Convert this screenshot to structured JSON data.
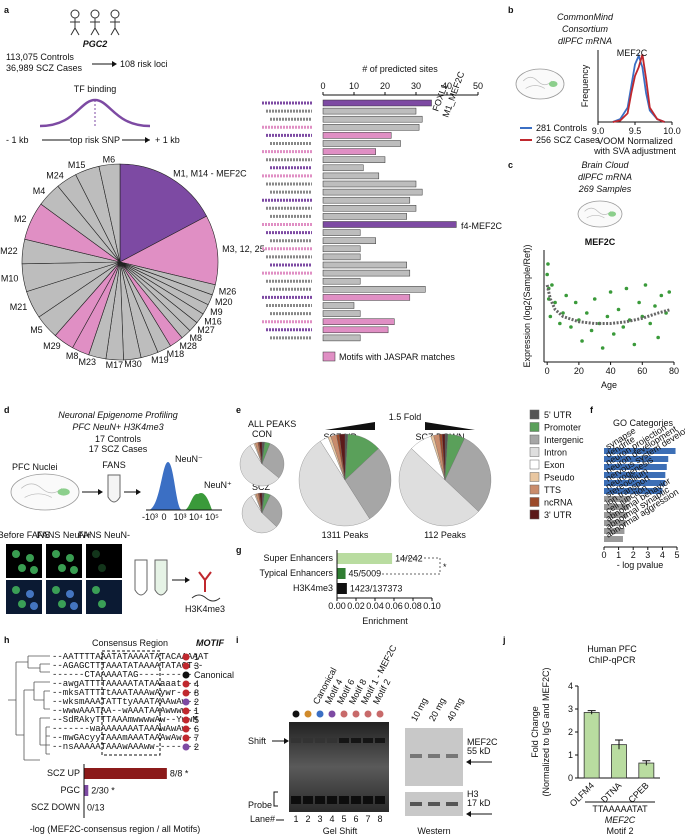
{
  "a": {
    "label": "a",
    "pgc": "PGC2",
    "controls": "113,075 Controls",
    "cases": "36,989 SCZ Cases",
    "loci": "108 risk loci",
    "tf": "TF binding",
    "minus": "- 1 kb",
    "snp": "top risk SNP",
    "plus": "+ 1 kb",
    "pie": {
      "type": "pie",
      "categories": [
        "M1, M14 - MEF2C",
        "M3, 12, 25",
        "M26",
        "M20",
        "M9",
        "M16",
        "M27",
        "M8",
        "M28",
        "M18",
        "M19",
        "M30",
        "M17",
        "M23",
        "M8",
        "M29",
        "M5",
        "M21",
        "M10",
        "M22",
        "M2",
        "M4",
        "M24",
        "M15",
        "M6"
      ],
      "values": [
        60,
        40,
        6,
        6,
        6,
        6,
        6,
        6,
        8,
        8,
        10,
        10,
        10,
        10,
        10,
        12,
        14,
        16,
        16,
        14,
        22,
        14,
        12,
        14,
        12
      ],
      "colors": [
        "#7d4aa3",
        "#e08fc4",
        "#bdbdbd",
        "#bdbdbd",
        "#bdbdbd",
        "#bdbdbd",
        "#bdbdbd",
        "#bdbdbd",
        "#e08fc4",
        "#bdbdbd",
        "#bdbdbd",
        "#bdbdbd",
        "#bdbdbd",
        "#bdbdbd",
        "#e08fc4",
        "#e08fc4",
        "#bdbdbd",
        "#bdbdbd",
        "#bdbdbd",
        "#bdbdbd",
        "#e08fc4",
        "#bdbdbd",
        "#bdbdbd",
        "#bdbdbd",
        "#bdbdbd"
      ]
    },
    "bars": {
      "type": "bar",
      "horizontal": true,
      "xlabel": "# of predicted sites",
      "values": [
        35,
        30,
        32,
        31,
        22,
        25,
        17,
        20,
        13,
        18,
        30,
        32,
        28,
        30,
        27,
        43,
        12,
        17,
        12,
        12,
        27,
        28,
        12,
        33,
        28,
        10,
        12,
        23,
        21,
        12
      ],
      "colors": [
        "#7d4aa3",
        "#bdbdbd",
        "#bdbdbd",
        "#bdbdbd",
        "#e08fc4",
        "#bdbdbd",
        "#e08fc4",
        "#bdbdbd",
        "#bdbdbd",
        "#bdbdbd",
        "#bdbdbd",
        "#bdbdbd",
        "#bdbdbd",
        "#bdbdbd",
        "#bdbdbd",
        "#7d4aa3",
        "#bdbdbd",
        "#bdbdbd",
        "#bdbdbd",
        "#bdbdbd",
        "#bdbdbd",
        "#bdbdbd",
        "#bdbdbd",
        "#bdbdbd",
        "#e08fc4",
        "#bdbdbd",
        "#bdbdbd",
        "#e08fc4",
        "#e08fc4",
        "#bdbdbd"
      ],
      "xlim": [
        0,
        50
      ],
      "xticks": [
        0,
        10,
        20,
        30,
        40,
        50
      ],
      "annotations": [
        "FOXL1",
        "M1_MEF2C",
        "f4-MEF2C"
      ],
      "legend": "Motifs with JASPAR matches",
      "legend_color": "#e08fc4"
    }
  },
  "b": {
    "label": "b",
    "title": [
      "CommonMind",
      "Consortium",
      "dlPFC mRNA"
    ],
    "chart": {
      "type": "line",
      "annotation": "MEF2C",
      "ylabel": "Frequency",
      "xlabel": [
        "VOOM Normalized",
        "with SVA adjustment"
      ],
      "series": [
        {
          "name": "281 Controls",
          "color": "#3b6fc4",
          "x": [
            9.2,
            9.3,
            9.4,
            9.45,
            9.5,
            9.55,
            9.6,
            9.65,
            9.7,
            9.8,
            9.9
          ],
          "values": [
            0,
            2,
            10,
            25,
            40,
            46,
            38,
            20,
            8,
            2,
            0
          ]
        },
        {
          "name": "256 SCZ Cases",
          "color": "#c0282e",
          "x": [
            9.2,
            9.3,
            9.4,
            9.45,
            9.5,
            9.55,
            9.6,
            9.65,
            9.7,
            9.8,
            9.9
          ],
          "values": [
            0,
            1,
            6,
            20,
            32,
            38,
            47,
            30,
            10,
            2,
            0
          ]
        }
      ],
      "xlim": [
        9,
        10
      ],
      "xticks": [
        {
          "value": 9,
          "label": "9.0"
        },
        9.5,
        {
          "value": 10,
          "label": "10.0"
        }
      ],
      "ylim": [
        0,
        50
      ]
    }
  },
  "c": {
    "label": "c",
    "title": [
      "Brain Cloud",
      "dlPFC mRNA",
      "269 Samples"
    ],
    "chart": {
      "type": "scatter",
      "annotation": "MEF2C",
      "ylabel": "Expression (log2(Sample/Ref))",
      "xlabel": "Age",
      "color": "#3a9a3a",
      "x": [
        0,
        0.5,
        1,
        1,
        2,
        3,
        5,
        8,
        10,
        12,
        15,
        18,
        20,
        22,
        25,
        28,
        30,
        33,
        35,
        38,
        40,
        42,
        45,
        48,
        50,
        52,
        55,
        58,
        60,
        62,
        65,
        68,
        70,
        72,
        75,
        77
      ],
      "values": [
        0.9,
        1.2,
        0.5,
        0.2,
        -0.3,
        0.6,
        0.1,
        -0.5,
        -0.2,
        0.3,
        -0.6,
        0.1,
        -0.4,
        -1.0,
        -0.2,
        -0.7,
        0.2,
        -0.5,
        -1.2,
        -0.3,
        0.4,
        -0.8,
        -0.1,
        -0.6,
        0.5,
        -0.4,
        -1.1,
        0.1,
        -0.3,
        0.6,
        -0.5,
        0.0,
        -0.9,
        0.3,
        -0.2,
        0.4
      ],
      "fit": {
        "color": "#666666",
        "x": [
          0,
          2,
          5,
          10,
          20,
          30,
          40,
          50,
          60,
          70,
          78
        ],
        "values": [
          0.6,
          0.2,
          -0.1,
          -0.3,
          -0.45,
          -0.5,
          -0.5,
          -0.45,
          -0.35,
          -0.2,
          -0.1
        ]
      },
      "xlim": [
        -2,
        80
      ],
      "xticks": [
        0,
        20,
        40,
        60,
        80
      ],
      "ylim": [
        -1.6,
        1.6
      ]
    }
  },
  "d": {
    "label": "d",
    "title": [
      "Neuronal Epigenome Profiling",
      "PFC NeuN+ H3K4me3"
    ],
    "cohort": [
      "17 Controls",
      "17 SCZ Cases"
    ],
    "nuclei": "PFC Nuclei",
    "fans": "FANS",
    "neg": "NeuN⁻",
    "pos": "NeuN⁺",
    "axis": [
      "-10³",
      "0",
      "10³",
      "10⁴",
      "10⁵"
    ],
    "images": [
      "Before FANS",
      "FANS NeuN+",
      "FANS NeuN-"
    ],
    "mark": "H3K4me3"
  },
  "e": {
    "label": "e",
    "fold": "1.5 Fold",
    "all": "ALL PEAKS",
    "con": "CON",
    "scz": "SCZ",
    "up": "SCZ UP",
    "down": "SCZ DOWN",
    "up_peaks": "1311 Peaks",
    "down_peaks": "112 Peaks",
    "legend": {
      "names": [
        "5' UTR",
        "Promoter",
        "Intergenic",
        "Intron",
        "Exon",
        "Pseudo",
        "TTS",
        "ncRNA",
        "3' UTR"
      ],
      "colors": [
        "#555555",
        "#5aa05a",
        "#a6a6a6",
        "#dedede",
        "#ffffff",
        "#e9c7a1",
        "#c98c6c",
        "#9b4a2a",
        "#5b1a1a"
      ]
    },
    "pies": [
      {
        "type": "pie",
        "values": [
          2,
          4,
          30,
          55,
          3,
          1,
          2,
          1,
          2
        ]
      },
      {
        "type": "pie",
        "values": [
          2,
          5,
          30,
          54,
          3,
          1,
          2,
          1,
          2
        ]
      },
      {
        "type": "pie",
        "values": [
          1,
          12,
          28,
          50,
          3,
          1,
          2,
          1,
          2
        ]
      },
      {
        "type": "pie",
        "values": [
          1,
          6,
          30,
          50,
          8,
          1,
          2,
          1,
          1
        ]
      }
    ]
  },
  "f": {
    "label": "f",
    "title": "GO Categories",
    "chart": {
      "type": "bar",
      "horizontal": true,
      "xlabel": "- log pvalue",
      "categories": [
        "synapse",
        "dendrite",
        "neuron projection",
        "neuron development",
        "nervous system development",
        "neurogenesis",
        "stereocilium",
        "ion transport",
        "cell junction",
        "abnormal behavior",
        "abnormal synaptic",
        "abnormal aggression"
      ],
      "values": [
        4.9,
        4.4,
        4.3,
        4.2,
        4.2,
        4.0,
        1.8,
        1.7,
        1.6,
        1.5,
        1.4,
        1.3
      ],
      "colors": [
        "#3d6fb6",
        "#3d6fb6",
        "#3d6fb6",
        "#3d6fb6",
        "#3d6fb6",
        "#3d6fb6",
        "#9a9a9a",
        "#9a9a9a",
        "#9a9a9a",
        "#9a9a9a",
        "#9a9a9a",
        "#9a9a9a"
      ],
      "xlim": [
        0,
        5
      ],
      "xticks": [
        0,
        1,
        2,
        3,
        4,
        5
      ]
    }
  },
  "g": {
    "label": "g",
    "chart": {
      "type": "bar",
      "horizontal": true,
      "xlabel": "Enrichment",
      "significance": "*",
      "categories": [
        "Super Enhancers",
        "Typical Enhancers",
        "H3K4me3"
      ],
      "values": [
        0.058,
        0.009,
        0.0104
      ],
      "annotations": [
        "14/242",
        "45/5009",
        "1423/137373"
      ],
      "colors": [
        "#b9dca0",
        "#2f7d32",
        "#111111"
      ],
      "label_colors": [
        "#7fbf4f",
        "#2f7d32",
        "#111111"
      ],
      "xlim": [
        0,
        0.1
      ],
      "xticks": [
        {
          "value": 0,
          "label": "0.00"
        },
        0.02,
        0.04,
        0.06,
        0.08,
        {
          "value": 0.1,
          "label": "0.10"
        }
      ]
    }
  },
  "h": {
    "label": "h",
    "region": "Consensus Region",
    "motif_title": "MOTIF",
    "sequences": [
      "--AATTTTAAATATAAAATATACAAAAAT",
      "--AGAGCTTTAAATATAAAATATAGT--",
      "------CTAAAAATAG----------",
      "--awgATTTTAAAAATATAAaaat---",
      "--mksATTTTtAAATAAAwAywr----",
      "--wksmAAATATTtyAAATAAAwAw--",
      "--wwwAAATAA--wAAATAAAwwww--",
      "--SdRAkyTTTAAAmwwwwAw--YwwM",
      "-------waAAAAAAATAAAwAwAw--",
      "--mwGAcyyTAAAmAAATAAAwAw---",
      "--nsAAAAATAAAwAAAww--------"
    ],
    "motifs": [
      "1",
      "3",
      "Canonical",
      "4",
      "8",
      "2",
      "1",
      "5",
      "6",
      "7",
      "2"
    ],
    "motif_colors": [
      "#c0282e",
      "#c0282e",
      "#111111",
      "#c0282e",
      "#c0282e",
      "#7d4aa3",
      "#c0282e",
      "#c0282e",
      "#c0282e",
      "#c0282e",
      "#7d4aa3"
    ],
    "chart": {
      "type": "bar",
      "horizontal": true,
      "xlabel": "-log (MEF2C-consensus region / all Motifs)",
      "categories": [
        "SCZ UP",
        "PGC",
        "SCZ DOWN"
      ],
      "values": [
        5.8,
        0.3,
        0
      ],
      "annotations": [
        "8/8 *",
        "2/30 *",
        "0/13"
      ],
      "colors": [
        "#8b1a1a",
        "#7d4aa3",
        "#333333"
      ],
      "label_colors": [
        "#c0282e",
        "#7d4aa3",
        "#111111"
      ],
      "xlim": [
        0,
        7
      ]
    }
  },
  "i": {
    "label": "i",
    "probes": [
      "Canonical",
      "Motif 4",
      "Motif 6",
      "Motif 8",
      "Motif 1 - MEF2C",
      "Motif 2"
    ],
    "probe_colors": [
      "#111111",
      "#3b6fc4",
      "#c0282e",
      "#3a9a3a",
      "#7d4aa3",
      "#d08a2a"
    ],
    "lane_colors": [
      "#111111",
      "#d08a2a",
      "#3b6fc4",
      "#7d4aa3",
      "#c86a6a",
      "#c86a6a",
      "#c86a6a",
      "#c86a6a"
    ],
    "shift": "Shift",
    "probe": "Probe",
    "lane": "Lane#",
    "lanes": [
      "1",
      "2",
      "3",
      "4",
      "5",
      "6",
      "7",
      "8"
    ],
    "gel": "Gel Shift",
    "western": "Western",
    "amounts": [
      "10 mg",
      "20 mg",
      "40 mg"
    ],
    "mef2c": "MEF2C",
    "mef2c_kd": "55 kD",
    "h3": "H3",
    "h3_kd": "17 kD"
  },
  "j": {
    "label": "j",
    "title": [
      "Human PFC",
      "ChIP-qPCR"
    ],
    "chart": {
      "type": "bar",
      "categories": [
        "OLFM4",
        "DTNA",
        "CPEB"
      ],
      "values": [
        2.85,
        1.45,
        0.65
      ],
      "errors": [
        0.08,
        0.2,
        0.1
      ],
      "color": "#b9dca0",
      "ylim": [
        0,
        4
      ],
      "yticks": [
        0,
        1,
        2,
        3,
        4
      ],
      "ylabel": [
        "Fold Change",
        "(Normalized to IgG and MEF2C)"
      ]
    },
    "motif": "TTAAAAATAT",
    "gene": "MEF2C",
    "motif_name": "Motif 2"
  }
}
